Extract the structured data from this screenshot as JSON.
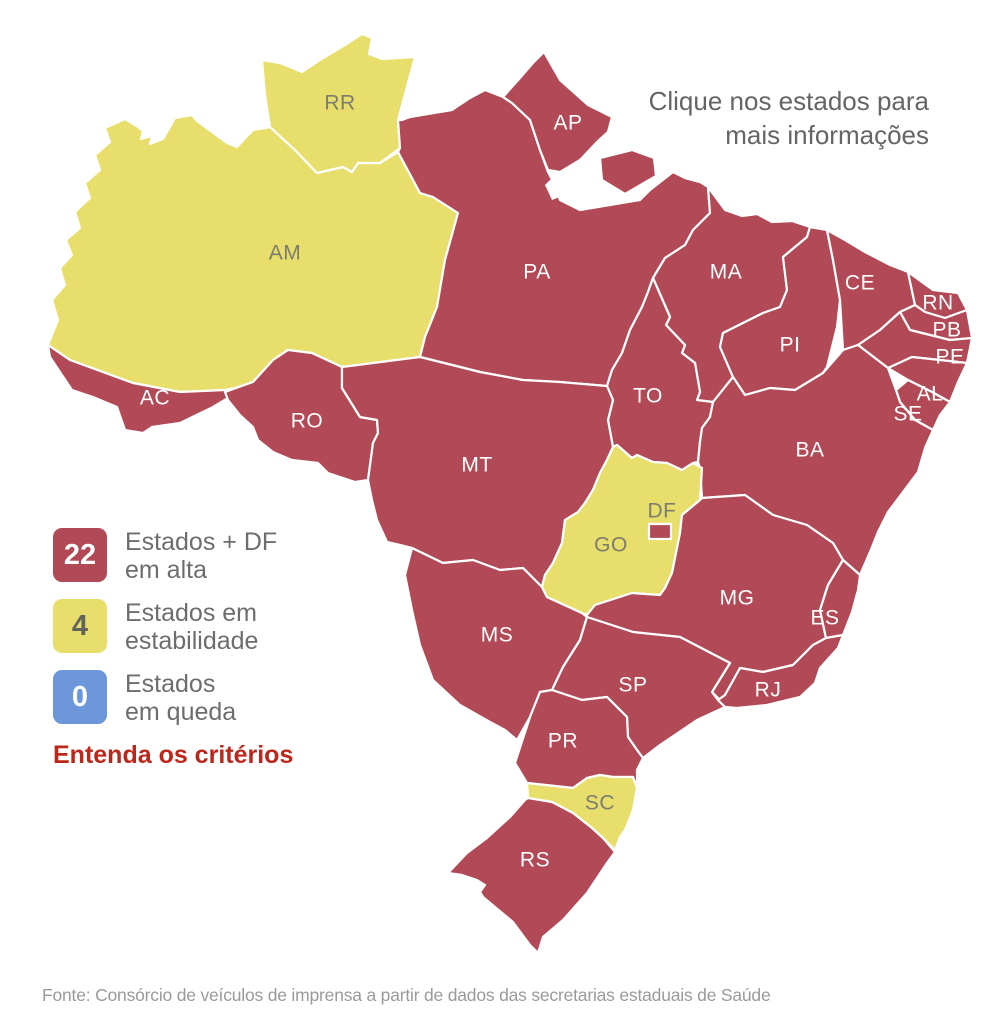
{
  "note": {
    "line1": "Clique nos estados para",
    "line2": "mais informações"
  },
  "palette": {
    "alta": "#b14956",
    "estabilidade": "#e7de6b",
    "queda": "#6c98db",
    "border": "#ffffff",
    "label_light": "#ffffff",
    "label_dark": "#7d7d6e",
    "link_red": "#bb271a"
  },
  "legend": {
    "items": [
      {
        "count": "22",
        "status": "alta",
        "count_color": "#ffffff",
        "label_line1": "Estados + DF",
        "label_line2": "em alta"
      },
      {
        "count": "4",
        "status": "estabilidade",
        "count_color": "#63635d",
        "label_line1": "Estados em",
        "label_line2": "estabilidade"
      },
      {
        "count": "0",
        "status": "queda",
        "count_color": "#ffffff",
        "label_line1": "Estados",
        "label_line2": "em queda"
      }
    ],
    "link_label": "Entenda os critérios"
  },
  "footer": {
    "source": "Fonte: Consórcio de veículos de imprensa a partir de dados das secretarias estaduais de Saúde"
  },
  "map": {
    "states": [
      {
        "code": "AM",
        "status": "estabilidade",
        "tone": "dark"
      },
      {
        "code": "RR",
        "status": "estabilidade",
        "tone": "dark"
      },
      {
        "code": "AC",
        "status": "alta",
        "tone": "light"
      },
      {
        "code": "RO",
        "status": "alta",
        "tone": "light"
      },
      {
        "code": "PA",
        "status": "alta",
        "tone": "light"
      },
      {
        "code": "AP",
        "status": "alta",
        "tone": "light"
      },
      {
        "code": "MA",
        "status": "alta",
        "tone": "light"
      },
      {
        "code": "PI",
        "status": "alta",
        "tone": "light"
      },
      {
        "code": "CE",
        "status": "alta",
        "tone": "light"
      },
      {
        "code": "RN",
        "status": "alta",
        "tone": "light"
      },
      {
        "code": "PB",
        "status": "alta",
        "tone": "light"
      },
      {
        "code": "PE",
        "status": "alta",
        "tone": "light"
      },
      {
        "code": "AL",
        "status": "alta",
        "tone": "light"
      },
      {
        "code": "SE",
        "status": "alta",
        "tone": "light"
      },
      {
        "code": "TO",
        "status": "alta",
        "tone": "light"
      },
      {
        "code": "BA",
        "status": "alta",
        "tone": "light"
      },
      {
        "code": "MT",
        "status": "alta",
        "tone": "light"
      },
      {
        "code": "MS",
        "status": "alta",
        "tone": "light"
      },
      {
        "code": "GO",
        "status": "estabilidade",
        "tone": "dark"
      },
      {
        "code": "MG",
        "status": "alta",
        "tone": "light"
      },
      {
        "code": "ES",
        "status": "alta",
        "tone": "light"
      },
      {
        "code": "SP",
        "status": "alta",
        "tone": "light"
      },
      {
        "code": "RJ",
        "status": "alta",
        "tone": "light"
      },
      {
        "code": "PR",
        "status": "alta",
        "tone": "light"
      },
      {
        "code": "SC",
        "status": "estabilidade",
        "tone": "dark"
      },
      {
        "code": "RS",
        "status": "alta",
        "tone": "light"
      },
      {
        "code": "DF",
        "status": "alta",
        "tone": "dark"
      }
    ]
  }
}
